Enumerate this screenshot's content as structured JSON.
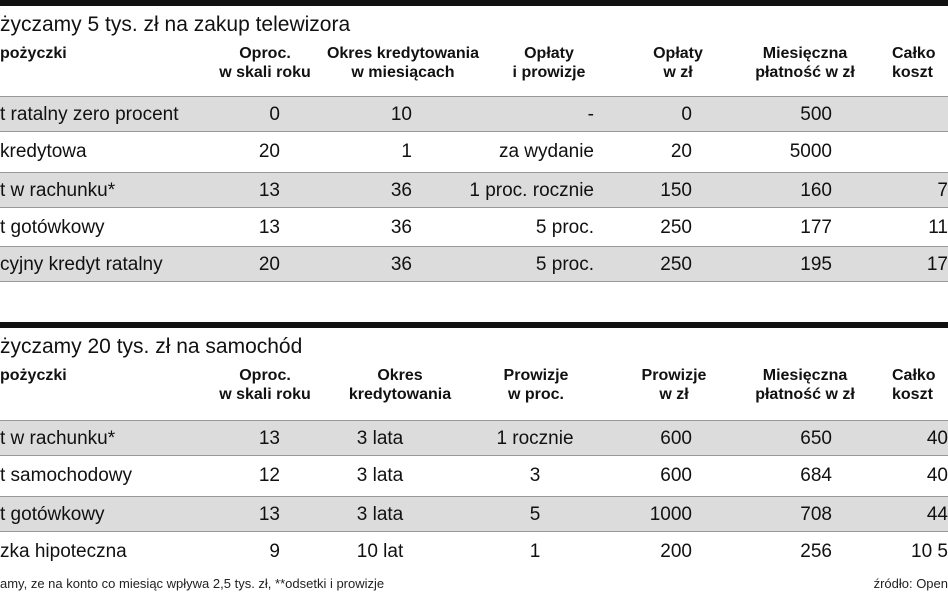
{
  "table1": {
    "title": "życzamy 5 tys. zł na zakup telewizora",
    "headers": [
      "pożyczki",
      "Oproc.\nw skali roku",
      "Okres kredytowania\nw miesiącach",
      "Opłaty\ni prowizje",
      "Opłaty\nw zł",
      "Miesięczna\npłatność w zł",
      "Całko\nkoszt"
    ],
    "rows": [
      [
        "t ratalny zero procent",
        "0",
        "10",
        "-",
        "0",
        "500",
        ""
      ],
      [
        "kredytowa",
        "20",
        "1",
        "za wydanie",
        "20",
        "5000",
        ""
      ],
      [
        "t w rachunku*",
        "13",
        "36",
        "1 proc. rocznie",
        "150",
        "160",
        "7"
      ],
      [
        "t gotówkowy",
        "13",
        "36",
        "5 proc.",
        "250",
        "177",
        "11"
      ],
      [
        "cyjny kredyt ratalny",
        "20",
        "36",
        "5 proc.",
        "250",
        "195",
        "17"
      ]
    ]
  },
  "table2": {
    "title": "życzamy 20 tys. zł na samochód",
    "headers": [
      "pożyczki",
      "Oproc.\nw skali roku",
      "Okres\nkredytowania",
      "Prowizje\nw proc.",
      "Prowizje\nw zł",
      "Miesięczna\npłatność w zł",
      "Całko\nkoszt"
    ],
    "rows": [
      [
        "t w rachunku*",
        "13",
        "3 lata",
        "1 rocznie",
        "600",
        "650",
        "40"
      ],
      [
        "t samochodowy",
        "12",
        "3 lata",
        "3",
        "600",
        "684",
        "40"
      ],
      [
        "t gotówkowy",
        "13",
        "3 lata",
        "5",
        "1000",
        "708",
        "44"
      ],
      [
        "zka hipoteczna",
        "9",
        "10 lat",
        "1",
        "200",
        "256",
        "10 5"
      ]
    ]
  },
  "footer": {
    "note": "amy, ze na konto co miesiąc wpływa 2,5 tys. zł, **odsetki i prowizje",
    "source": "źródło: Open"
  }
}
